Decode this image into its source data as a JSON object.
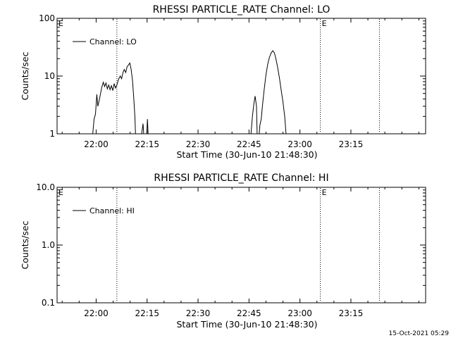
{
  "chart_data": [
    {
      "type": "line",
      "title": "RHESSI PARTICLE_RATE Channel: LO",
      "xlabel": "Start Time (30-Jun-10 21:48:30)",
      "ylabel": "Counts/sec",
      "yscale": "log",
      "ylim": [
        1,
        100
      ],
      "xlim_minutes_of_day": [
        1308.5,
        1417
      ],
      "xticks": [
        1320,
        1335,
        1350,
        1365,
        1380,
        1395
      ],
      "xtick_labels": [
        "22:00",
        "22:15",
        "22:30",
        "22:45",
        "23:00",
        "23:15"
      ],
      "ytick_labels": [
        "1",
        "10",
        "100"
      ],
      "ytick_values": [
        1,
        10,
        100
      ],
      "event_lines_minutes": [
        1326.1,
        1386.0,
        1403.4
      ],
      "event_markers": [
        {
          "label": "E",
          "minute": 1308.5
        },
        {
          "label": "E",
          "minute": 1386.0
        }
      ],
      "grid": false,
      "legend_position": "top-left",
      "series": [
        {
          "name": "Channel: LO",
          "color": "#000000",
          "segments": [
            [
              [
                1319.0,
                1
              ],
              [
                1319.4,
                1.8
              ],
              [
                1319.8,
                2.2
              ],
              [
                1320.2,
                4.8
              ],
              [
                1320.5,
                3.0
              ],
              [
                1320.9,
                3.8
              ],
              [
                1321.3,
                5.0
              ],
              [
                1321.7,
                6.5
              ],
              [
                1322.1,
                7.8
              ],
              [
                1322.5,
                6.6
              ],
              [
                1322.9,
                7.6
              ],
              [
                1323.3,
                6.0
              ],
              [
                1323.7,
                7.0
              ],
              [
                1324.1,
                5.8
              ],
              [
                1324.5,
                6.8
              ],
              [
                1324.9,
                5.6
              ],
              [
                1325.3,
                7.4
              ],
              [
                1325.7,
                6.2
              ],
              [
                1326.1,
                7.0
              ],
              [
                1326.6,
                8.8
              ],
              [
                1327.1,
                10.0
              ],
              [
                1327.5,
                9.0
              ],
              [
                1327.9,
                11.5
              ],
              [
                1328.3,
                13.0
              ],
              [
                1328.7,
                11.5
              ],
              [
                1329.1,
                14.5
              ],
              [
                1329.5,
                15.5
              ],
              [
                1329.9,
                16.8
              ],
              [
                1330.3,
                13.0
              ],
              [
                1330.7,
                8.5
              ],
              [
                1331.1,
                4.0
              ],
              [
                1331.4,
                2.0
              ],
              [
                1331.6,
                1
              ]
            ],
            [
              [
                1333.4,
                1
              ],
              [
                1333.8,
                1.5
              ],
              [
                1334.0,
                1
              ]
            ],
            [
              [
                1334.9,
                1
              ],
              [
                1335.1,
                1.8
              ],
              [
                1335.3,
                1
              ]
            ],
            [
              [
                1365.6,
                1
              ],
              [
                1366.0,
                2.0
              ],
              [
                1366.4,
                3.2
              ],
              [
                1366.8,
                4.5
              ],
              [
                1367.2,
                3.0
              ],
              [
                1367.4,
                1
              ]
            ],
            [
              [
                1368.0,
                1
              ],
              [
                1368.2,
                1.4
              ],
              [
                1368.6,
                1.8
              ],
              [
                1369.0,
                3.2
              ],
              [
                1369.5,
                6.0
              ],
              [
                1370.0,
                10.5
              ],
              [
                1370.5,
                16.0
              ],
              [
                1371.0,
                21.0
              ],
              [
                1371.5,
                25.0
              ],
              [
                1372.0,
                27.5
              ],
              [
                1372.5,
                25.0
              ],
              [
                1373.0,
                19.0
              ],
              [
                1373.5,
                13.5
              ],
              [
                1374.0,
                9.0
              ],
              [
                1374.5,
                5.6
              ],
              [
                1375.0,
                3.6
              ],
              [
                1375.5,
                2.0
              ],
              [
                1375.9,
                1
              ]
            ]
          ]
        }
      ]
    },
    {
      "type": "line",
      "title": "RHESSI PARTICLE_RATE Channel: HI",
      "xlabel": "Start Time (30-Jun-10 21:48:30)",
      "ylabel": "Counts/sec",
      "yscale": "log",
      "ylim": [
        0.1,
        10
      ],
      "xlim_minutes_of_day": [
        1308.5,
        1417
      ],
      "xticks": [
        1320,
        1335,
        1350,
        1365,
        1380,
        1395
      ],
      "xtick_labels": [
        "22:00",
        "22:15",
        "22:30",
        "22:45",
        "23:00",
        "23:15"
      ],
      "ytick_labels": [
        "0.1",
        "1.0",
        "10.0"
      ],
      "ytick_values": [
        0.1,
        1,
        10
      ],
      "event_lines_minutes": [
        1326.1,
        1386.0,
        1403.4
      ],
      "event_markers": [
        {
          "label": "E",
          "minute": 1308.5
        },
        {
          "label": "E",
          "minute": 1386.0
        }
      ],
      "grid": false,
      "legend_position": "top-left",
      "series": [
        {
          "name": "Channel: HI",
          "color": "#000000",
          "segments": []
        }
      ]
    }
  ],
  "footer": {
    "timestamp": "15-Oct-2021 05:29"
  }
}
